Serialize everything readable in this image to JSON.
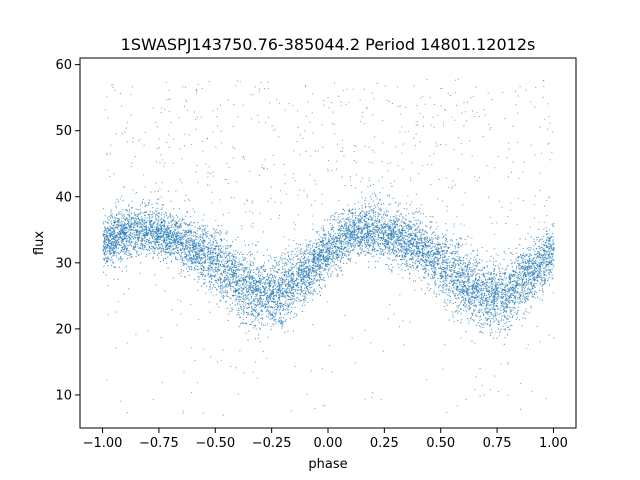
{
  "chart_data": {
    "type": "scatter",
    "title": "1SWASPJ143750.76-385044.2 Period 14801.12012s",
    "xlabel": "phase",
    "ylabel": "flux",
    "xlim": [
      -1.1,
      1.1
    ],
    "ylim": [
      5,
      61
    ],
    "xticks": [
      -1.0,
      -0.75,
      -0.5,
      -0.25,
      0.0,
      0.25,
      0.5,
      0.75,
      1.0
    ],
    "xtick_labels": [
      "−1.00",
      "−0.75",
      "−0.50",
      "−0.25",
      "0.00",
      "0.25",
      "0.50",
      "0.75",
      "1.00"
    ],
    "yticks": [
      10,
      20,
      30,
      40,
      50,
      60
    ],
    "ytick_labels": [
      "10",
      "20",
      "30",
      "40",
      "50",
      "60"
    ],
    "grid": false,
    "legend": "none",
    "series_color": "#1f77b4",
    "x_range": [
      -1.0,
      1.0
    ],
    "trend_points": {
      "x": [
        -1.0,
        -0.9,
        -0.8,
        -0.7,
        -0.6,
        -0.5,
        -0.4,
        -0.3,
        -0.2,
        -0.1,
        0.0,
        0.1,
        0.2,
        0.3,
        0.4,
        0.5,
        0.6,
        0.7,
        0.8,
        0.9,
        1.0
      ],
      "y": [
        33,
        34.5,
        35,
        34,
        32.5,
        30,
        27,
        25,
        25.5,
        28.5,
        32,
        34.5,
        35,
        34.2,
        32.5,
        30,
        27,
        25,
        25.5,
        28.5,
        32
      ]
    },
    "band_halfwidth": [
      3.5,
      3.5,
      3.5,
      3.5,
      3.8,
      4.5,
      5,
      4.5,
      4.5,
      4,
      3.5,
      3.5,
      3.5,
      3.5,
      3.8,
      4.5,
      5,
      4.5,
      4.5,
      4,
      3.5
    ],
    "outlier_range": [
      7,
      58
    ]
  }
}
